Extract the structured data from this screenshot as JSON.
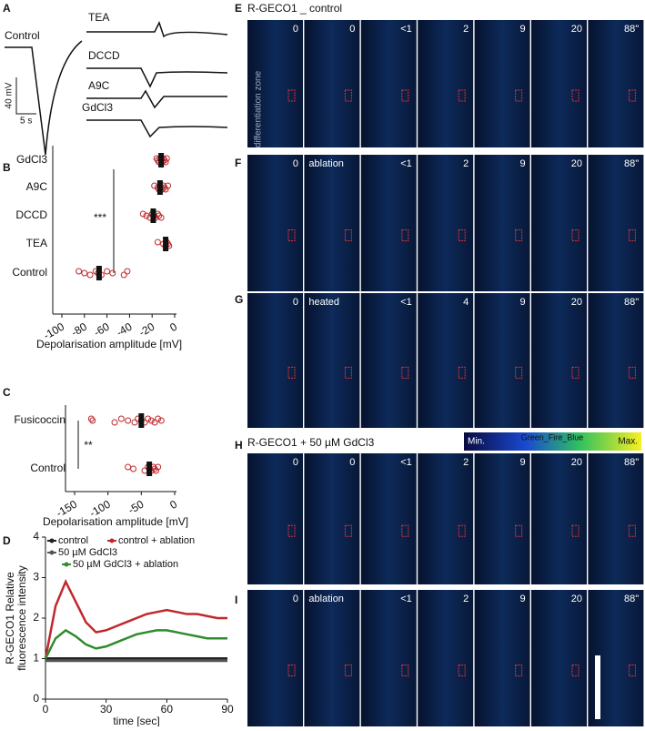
{
  "panel_labels": [
    "A",
    "B",
    "C",
    "D",
    "E",
    "F",
    "G",
    "H",
    "I"
  ],
  "panel_a": {
    "traces": [
      "Control",
      "TEA",
      "DCCD",
      "A9C",
      "GdCl3"
    ],
    "scale_y": "40 mV",
    "scale_x": "5 s"
  },
  "chart_data": [
    {
      "type": "dot",
      "categories": [
        "GdCl3",
        "A9C",
        "DCCD",
        "TEA",
        "Control"
      ],
      "means": [
        -12,
        -13,
        -19,
        -8,
        -67
      ],
      "points": [
        [
          -16,
          -15,
          -14,
          -13,
          -12,
          -11,
          -10,
          -9,
          -8,
          -7
        ],
        [
          -18,
          -15,
          -14,
          -13,
          -12,
          -11,
          -10,
          -9,
          -8,
          -6
        ],
        [
          -28,
          -25,
          -22,
          -20,
          -18,
          -17,
          -15,
          -14,
          -12
        ],
        [
          -15,
          -10,
          -8,
          -7,
          -6,
          -5
        ],
        [
          -85,
          -80,
          -75,
          -70,
          -68,
          -65,
          -60,
          -55,
          -45,
          -42
        ]
      ],
      "point_color": "#c0282c",
      "xlim": [
        -100,
        0
      ],
      "xticks": [
        -100,
        -80,
        -60,
        -40,
        -20,
        0
      ],
      "xlabel": "Depolarisation amplitude [mV]",
      "annotation": "***"
    },
    {
      "type": "dot",
      "categories": [
        "Fusicoccin",
        "Control"
      ],
      "means": [
        -50,
        -38
      ],
      "points": [
        [
          -125,
          -123,
          -90,
          -80,
          -70,
          -60,
          -55,
          -50,
          -45,
          -40,
          -35,
          -30,
          -25,
          -20
        ],
        [
          -70,
          -62,
          -45,
          -40,
          -38,
          -35,
          -32,
          -30,
          -28,
          -25
        ]
      ],
      "point_color": "#c0282c",
      "xlim": [
        -150,
        0
      ],
      "xticks": [
        -150,
        -100,
        -50,
        0
      ],
      "xlabel": "Depolarisation amplitude [mV]",
      "annotation": "**"
    },
    {
      "type": "line",
      "x": [
        0,
        5,
        10,
        15,
        20,
        25,
        30,
        35,
        40,
        45,
        50,
        55,
        60,
        65,
        70,
        75,
        80,
        85,
        90
      ],
      "series": [
        {
          "name": "control",
          "color": "#222222",
          "values": [
            1,
            1,
            1,
            1,
            1,
            1,
            1,
            1,
            1,
            1,
            1,
            1,
            1,
            1,
            1,
            1,
            1,
            1,
            1
          ]
        },
        {
          "name": "control + ablation",
          "color": "#c0282c",
          "values": [
            1,
            2.3,
            2.9,
            2.4,
            1.9,
            1.65,
            1.7,
            1.8,
            1.9,
            2,
            2.1,
            2.15,
            2.2,
            2.15,
            2.1,
            2.1,
            2.05,
            2,
            2
          ]
        },
        {
          "name": "50 µM GdCl3",
          "color": "#555555",
          "values": [
            0.95,
            0.95,
            0.95,
            0.95,
            0.95,
            0.95,
            0.95,
            0.95,
            0.95,
            0.95,
            0.95,
            0.95,
            0.95,
            0.95,
            0.95,
            0.95,
            0.95,
            0.95,
            0.95
          ]
        },
        {
          "name": "50 µM GdCl3 + ablation",
          "color": "#2e8b2e",
          "values": [
            1,
            1.5,
            1.7,
            1.55,
            1.35,
            1.25,
            1.3,
            1.4,
            1.5,
            1.6,
            1.65,
            1.7,
            1.7,
            1.65,
            1.6,
            1.55,
            1.5,
            1.5,
            1.5
          ]
        }
      ],
      "xlim": [
        0,
        90
      ],
      "xticks": [
        0,
        30,
        60,
        90
      ],
      "ylim": [
        0,
        4
      ],
      "yticks": [
        0,
        1,
        2,
        3,
        4
      ],
      "xlabel": "time [sec]",
      "ylabel": [
        "R-GECO1 Relative",
        "fluorescence intensity"
      ]
    }
  ],
  "imaging": {
    "title_e": "R-GECO1 _ control",
    "title_h": "R-GECO1 + 50 µM GdCl3",
    "zone": "differentiation zone",
    "colorbar": {
      "min": "Min.",
      "name": "Green_Fire_Blue",
      "max": "Max."
    },
    "rows": [
      [
        "0",
        "0",
        "<1",
        "2",
        "9",
        "20",
        "88''"
      ],
      [
        "0",
        "ablation",
        "<1",
        "2",
        "9",
        "20",
        "88''"
      ],
      [
        "0",
        "heated",
        "<1",
        "4",
        "9",
        "20",
        "88''"
      ],
      [
        "0",
        "0",
        "<1",
        "2",
        "9",
        "20",
        "88''"
      ],
      [
        "0",
        "ablation",
        "<1",
        "2",
        "9",
        "20",
        "88''"
      ]
    ]
  }
}
